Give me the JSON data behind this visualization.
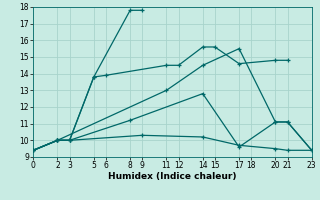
{
  "xlabel": "Humidex (Indice chaleur)",
  "bg_color": "#c8ebe3",
  "grid_color": "#a8d4cc",
  "line_color": "#006868",
  "lines": [
    {
      "x": [
        0,
        2,
        3,
        5,
        8,
        9
      ],
      "y": [
        9.4,
        10.0,
        10.0,
        13.8,
        17.8,
        17.8
      ]
    },
    {
      "x": [
        0,
        2,
        3,
        5,
        6,
        11,
        12,
        14,
        15,
        17,
        20,
        21
      ],
      "y": [
        9.4,
        10.0,
        10.0,
        13.8,
        13.9,
        14.5,
        14.5,
        15.6,
        15.6,
        14.6,
        14.8,
        14.8
      ]
    },
    {
      "x": [
        0,
        2,
        11,
        14,
        17,
        20,
        21,
        23
      ],
      "y": [
        9.4,
        10.0,
        13.0,
        14.5,
        15.5,
        11.1,
        11.1,
        9.4
      ]
    },
    {
      "x": [
        0,
        2,
        3,
        8,
        14,
        17,
        20,
        21,
        23
      ],
      "y": [
        9.4,
        10.0,
        10.0,
        11.2,
        12.8,
        9.6,
        11.1,
        11.1,
        9.4
      ]
    },
    {
      "x": [
        0,
        2,
        3,
        9,
        14,
        17,
        20,
        21,
        23
      ],
      "y": [
        9.4,
        10.0,
        10.0,
        10.3,
        10.2,
        9.7,
        9.5,
        9.4,
        9.4
      ]
    }
  ],
  "xlim": [
    0,
    23
  ],
  "ylim": [
    9,
    18
  ],
  "xticks": [
    0,
    2,
    3,
    5,
    6,
    8,
    9,
    11,
    12,
    14,
    15,
    17,
    18,
    20,
    21,
    23
  ],
  "xtick_labels": [
    "0",
    "2",
    "3",
    "5",
    "6",
    "8",
    "9",
    "11",
    "12",
    "14",
    "15",
    "17",
    "18",
    "20",
    "21",
    "23"
  ],
  "yticks": [
    9,
    10,
    11,
    12,
    13,
    14,
    15,
    16,
    17,
    18
  ],
  "xlabel_fontsize": 6.5,
  "xlabel_fontweight": "bold",
  "tick_fontsize": 5.5,
  "linewidth": 0.9,
  "markersize": 3.5,
  "markeredgewidth": 0.9
}
